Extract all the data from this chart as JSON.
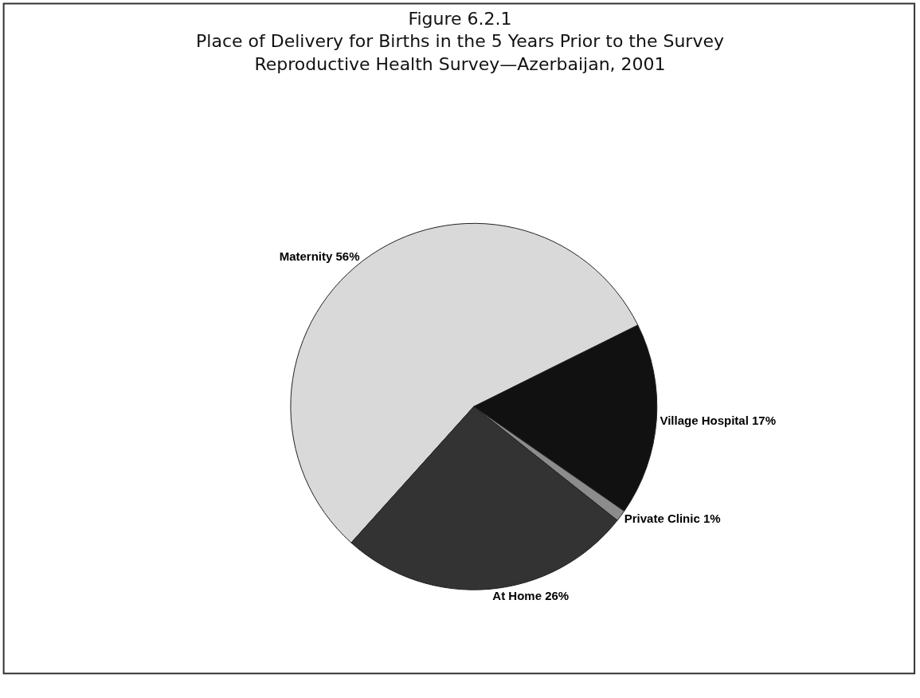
{
  "chart_data": {
    "type": "pie",
    "title": "Figure 6.2.1\nPlace of Delivery for Births in the 5 Years Prior to the Survey\nReproductive Health Survey—Azerbaijan, 2001",
    "categories": [
      "Maternity",
      "Village Hospital",
      "Private Clinic",
      "At Home"
    ],
    "values": [
      56,
      17,
      1,
      26
    ],
    "value_labels": [
      "56%",
      "17%",
      "1%",
      "26%"
    ],
    "colors": [
      "#d9d9d9",
      "#111111",
      "#8c8c8c",
      "#333333"
    ],
    "legend": false
  }
}
